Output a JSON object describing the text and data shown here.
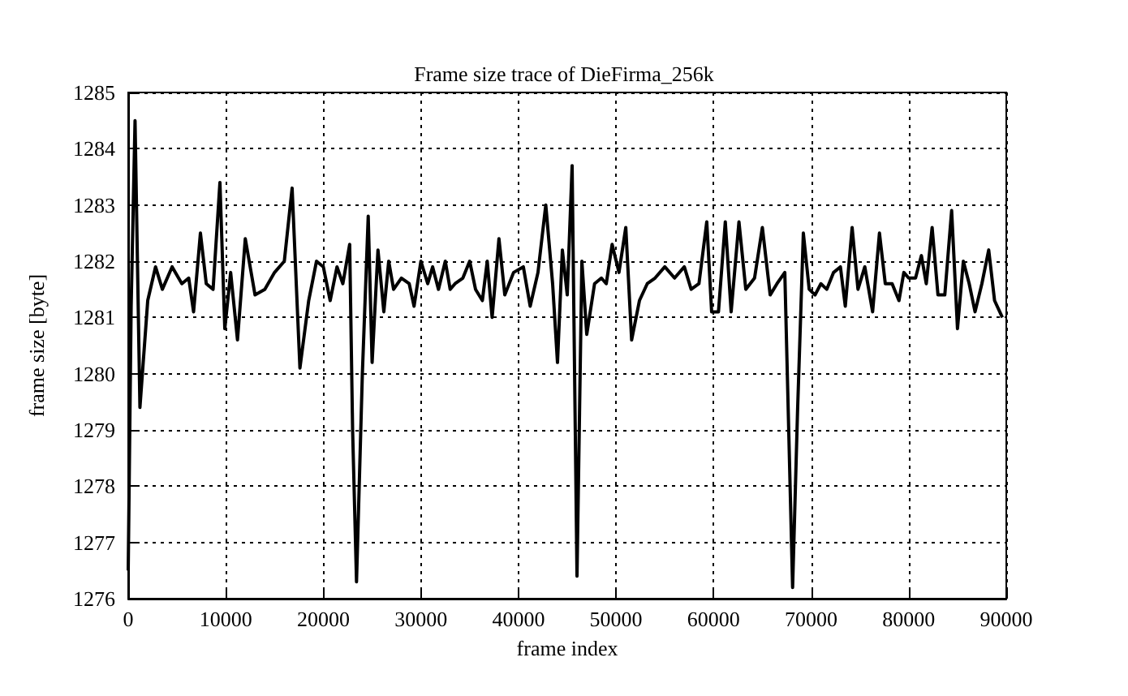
{
  "chart_data": {
    "type": "line",
    "title": "Frame size trace of DieFirma_256k",
    "xlabel": "frame index",
    "ylabel": "frame size [byte]",
    "x": [
      0,
      300,
      700,
      1200,
      2000,
      2800,
      3500,
      4500,
      5500,
      6200,
      6700,
      7400,
      8000,
      8700,
      9400,
      9900,
      10500,
      11200,
      12000,
      13000,
      14000,
      15000,
      16000,
      16800,
      17600,
      18500,
      19300,
      20000,
      20700,
      21400,
      22000,
      22700,
      23000,
      23400,
      24000,
      24600,
      25000,
      25600,
      26200,
      26700,
      27200,
      28000,
      28800,
      29300,
      30000,
      30700,
      31200,
      31800,
      32500,
      33000,
      33500,
      34300,
      35000,
      35600,
      36300,
      36800,
      37300,
      38000,
      38600,
      39500,
      40500,
      41200,
      42000,
      42800,
      43500,
      44000,
      44500,
      45000,
      45500,
      46000,
      46500,
      47000,
      47800,
      48500,
      49000,
      49600,
      50300,
      51000,
      51600,
      52400,
      53200,
      54000,
      55000,
      56000,
      57000,
      57700,
      58500,
      59300,
      59800,
      60500,
      61200,
      61800,
      62600,
      63300,
      64200,
      65000,
      65800,
      66500,
      67300,
      67700,
      68100,
      68600,
      69200,
      69800,
      70400,
      71000,
      71600,
      72300,
      73000,
      73500,
      74200,
      74800,
      75500,
      76300,
      77000,
      77600,
      78300,
      79000,
      79500,
      80000,
      80700,
      81300,
      81800,
      82400,
      83000,
      83700,
      84400,
      85000,
      85600,
      86200,
      86800,
      87500,
      88200,
      88800,
      89600
    ],
    "series": [
      {
        "color": "#000000",
        "values": [
          1276.5,
          1281.2,
          1284.5,
          1279.4,
          1281.3,
          1281.9,
          1281.5,
          1281.9,
          1281.6,
          1281.7,
          1281.1,
          1282.5,
          1281.6,
          1281.5,
          1283.4,
          1280.8,
          1281.8,
          1280.6,
          1282.4,
          1281.4,
          1281.5,
          1281.8,
          1282.0,
          1283.3,
          1280.1,
          1281.3,
          1282.0,
          1281.9,
          1281.3,
          1281.9,
          1281.6,
          1282.3,
          1279.0,
          1276.3,
          1280.0,
          1282.8,
          1280.2,
          1282.2,
          1281.1,
          1282.0,
          1281.5,
          1281.7,
          1281.6,
          1281.2,
          1282.0,
          1281.6,
          1281.9,
          1281.5,
          1282.0,
          1281.5,
          1281.6,
          1281.7,
          1282.0,
          1281.5,
          1281.3,
          1282.0,
          1281.0,
          1282.4,
          1281.4,
          1281.8,
          1281.9,
          1281.2,
          1281.8,
          1283.0,
          1281.6,
          1280.2,
          1282.2,
          1281.4,
          1283.7,
          1276.4,
          1282.0,
          1280.7,
          1281.6,
          1281.7,
          1281.6,
          1282.3,
          1281.8,
          1282.6,
          1280.6,
          1281.3,
          1281.6,
          1281.7,
          1281.9,
          1281.7,
          1281.9,
          1281.5,
          1281.6,
          1282.7,
          1281.1,
          1281.1,
          1282.7,
          1281.1,
          1282.7,
          1281.5,
          1281.7,
          1282.6,
          1281.4,
          1281.6,
          1281.8,
          1279.0,
          1276.2,
          1279.3,
          1282.5,
          1281.5,
          1281.4,
          1281.6,
          1281.5,
          1281.8,
          1281.9,
          1281.2,
          1282.6,
          1281.5,
          1281.9,
          1281.1,
          1282.5,
          1281.6,
          1281.6,
          1281.3,
          1281.8,
          1281.7,
          1281.7,
          1282.1,
          1281.6,
          1282.6,
          1281.4,
          1281.4,
          1282.9,
          1280.8,
          1282.0,
          1281.6,
          1281.1,
          1281.6,
          1282.2,
          1281.3,
          1281.0
        ]
      }
    ],
    "xlim": [
      0,
      90000
    ],
    "xticks": [
      0,
      10000,
      20000,
      30000,
      40000,
      50000,
      60000,
      70000,
      80000,
      90000
    ],
    "ylim": [
      1276,
      1285
    ],
    "yticks": [
      1276,
      1277,
      1278,
      1279,
      1280,
      1281,
      1282,
      1283,
      1284,
      1285
    ],
    "grid": true,
    "marker": "none",
    "line_style": "solid"
  }
}
